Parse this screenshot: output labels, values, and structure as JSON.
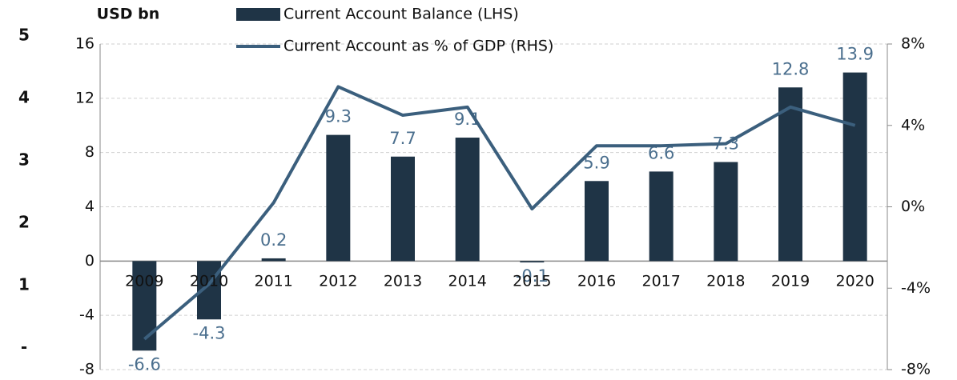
{
  "chart_data": {
    "type": "bar",
    "y_unit_label": "USD bn",
    "side_labels": [
      "5",
      "4",
      "3",
      "2",
      "1",
      "-"
    ],
    "categories": [
      "2009",
      "2010",
      "2011",
      "2012",
      "2013",
      "2014",
      "2015",
      "2016",
      "2017",
      "2018",
      "2019",
      "2020"
    ],
    "series": [
      {
        "name": "Current Account Balance (LHS)",
        "type": "bar",
        "axis": "y",
        "color": "#1f3446",
        "values": [
          -6.6,
          -4.3,
          0.2,
          9.3,
          7.7,
          9.1,
          -0.1,
          5.9,
          6.6,
          7.3,
          12.8,
          13.9
        ]
      },
      {
        "name": "Current Account as % of GDP (RHS)",
        "type": "line",
        "axis": "y2",
        "color": "#3b5f7d",
        "values": [
          -6.5,
          -3.8,
          0.2,
          5.9,
          4.5,
          4.9,
          -0.1,
          3.0,
          3.0,
          3.1,
          4.9,
          4.0
        ]
      }
    ],
    "ylim": [
      -8,
      16
    ],
    "yticks": [
      -8,
      -4,
      0,
      4,
      8,
      12,
      16
    ],
    "y2lim": [
      -8,
      8
    ],
    "y2ticks": [
      {
        "value": -8,
        "label": "-8%"
      },
      {
        "value": -4,
        "label": "-4%"
      },
      {
        "value": 0,
        "label": "0%"
      },
      {
        "value": 4,
        "label": "4%"
      },
      {
        "value": 8,
        "label": "8%"
      }
    ],
    "grid": true,
    "value_label_color": "#4b6f8e"
  }
}
